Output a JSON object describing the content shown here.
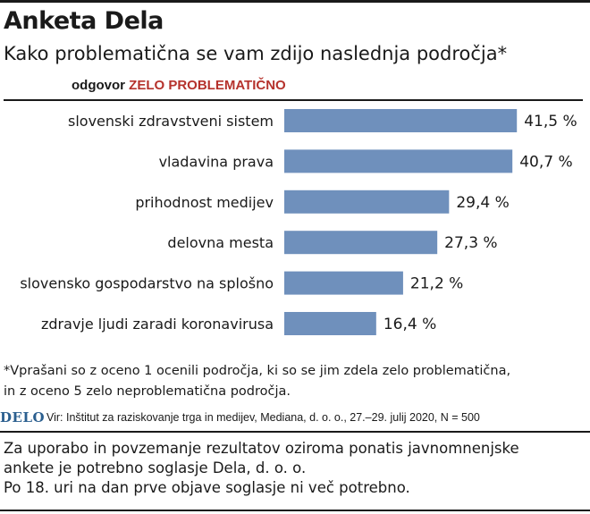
{
  "header": {
    "title": "Anketa Dela",
    "subtitle": "Kako problematična se vam zdijo naslednja področja*",
    "answer_prefix": "odgovor",
    "answer_highlight": "ZELO PROBLEMATIČNO"
  },
  "chart_data": {
    "type": "bar",
    "orientation": "horizontal",
    "categories": [
      "slovenski zdravstveni sistem",
      "vladavina prava",
      "prihodnost medijev",
      "delovna mesta",
      "slovensko gospodarstvo na splošno",
      "zdravje ljudi zaradi koronavirusa"
    ],
    "values": [
      41.5,
      40.7,
      29.4,
      27.3,
      21.2,
      16.4
    ],
    "value_labels": [
      "41,5 %",
      "40,7 %",
      "29,4 %",
      "27,3 %",
      "21,2 %",
      "16,4 %"
    ],
    "unit": "%",
    "bar_color": "#6f90bc",
    "grid": false,
    "legend": "none"
  },
  "footnote": {
    "line1": "*Vprašani so z oceno 1 ocenili področja, ki so se jim zdela zelo problematična,",
    "line2": "in z oceno 5 zelo neproblematična področja."
  },
  "source": {
    "logo": "DELO",
    "text": "Vir: Inštitut za raziskovanje trga in medijev, Mediana, d. o. o., 27.–29. julij 2020, N = 500"
  },
  "disclaimer": {
    "line1": "Za uporabo in povzemanje rezultatov oziroma ponatis javnomnenjske",
    "line2": "ankete je potrebno soglasje Dela, d. o. o.",
    "line3": "Po 18. uri na dan prve objave soglasje ni več potrebno."
  },
  "colors": {
    "accent_red": "#b5322c",
    "logo_blue": "#2b5f8f"
  }
}
